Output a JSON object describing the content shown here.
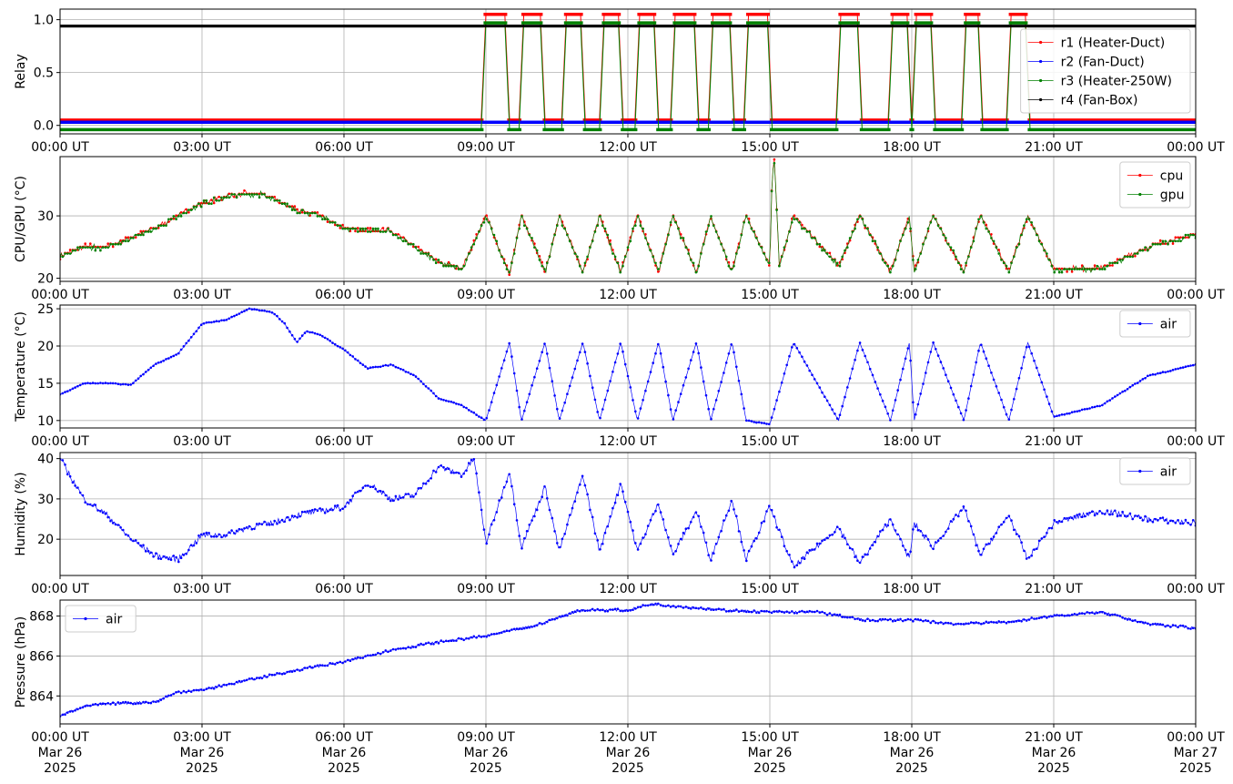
{
  "chart_data": [
    {
      "type": "line",
      "ylabel": "Relay",
      "ylim": [
        -0.08,
        1.1
      ],
      "yticks": [
        0.0,
        0.5,
        1.0
      ],
      "ytick_labels": [
        "0.0",
        "0.5",
        "1.0"
      ],
      "grid": true,
      "legend": "right",
      "legend_placement": "center-right",
      "on_intervals_hours": [
        [
          8.95,
          9.45
        ],
        [
          9.75,
          10.2
        ],
        [
          10.65,
          11.05
        ],
        [
          11.45,
          11.85
        ],
        [
          12.2,
          12.6
        ],
        [
          12.95,
          13.45
        ],
        [
          13.75,
          14.2
        ],
        [
          14.5,
          15.0
        ],
        [
          16.45,
          16.9
        ],
        [
          17.55,
          17.95
        ],
        [
          18.05,
          18.45
        ],
        [
          19.1,
          19.45
        ],
        [
          20.05,
          20.45
        ]
      ],
      "series": [
        {
          "name": "r1 (Heater-Duct)",
          "color": "#ff0000",
          "off_value": 0.05,
          "on_value": 1.05,
          "marker": "dot"
        },
        {
          "name": "r2 (Fan-Duct)",
          "color": "#0000ff",
          "off_value": 0.03,
          "on_value": 0.03,
          "marker": "dot"
        },
        {
          "name": "r3 (Heater-250W)",
          "color": "#008000",
          "off_value": -0.04,
          "on_value": 0.97,
          "marker": "dot"
        },
        {
          "name": "r4 (Fan-Box)",
          "color": "#000000",
          "off_value": 0.94,
          "on_value": 0.94,
          "marker": "dot"
        }
      ]
    },
    {
      "type": "line",
      "ylabel": "CPU/GPU (°C)",
      "ylim": [
        19.5,
        39.5
      ],
      "yticks": [
        20,
        30
      ],
      "ytick_labels": [
        "20",
        "30"
      ],
      "grid": true,
      "legend_placement": "top-right",
      "series": [
        {
          "name": "cpu",
          "color": "#ff0000",
          "x_hours": [
            0,
            0.5,
            1,
            2,
            3,
            3.75,
            4.25,
            5,
            5.5,
            6,
            7,
            7.5,
            8,
            8.5,
            9,
            9.5,
            9.75,
            10.25,
            10.55,
            11.05,
            11.4,
            11.85,
            12.2,
            12.65,
            12.95,
            13.45,
            13.75,
            14.2,
            14.5,
            15.0,
            15.05,
            15.1,
            15.2,
            15.25,
            15.5,
            16.45,
            16.9,
            17.55,
            17.95,
            18.05,
            18.45,
            19.1,
            19.45,
            20.05,
            20.45,
            21,
            22,
            23,
            24
          ],
          "y": [
            23.5,
            25,
            25,
            28,
            32,
            33.5,
            33.5,
            31,
            30,
            28,
            27.5,
            25,
            22.5,
            21.5,
            30,
            20.5,
            30,
            21,
            30,
            21,
            30,
            21,
            30,
            21,
            30,
            21,
            30,
            21,
            30,
            22,
            37,
            39,
            22,
            23,
            30,
            22,
            30,
            21,
            30,
            21,
            30,
            21,
            30,
            21,
            30,
            21.5,
            21.5,
            25,
            27
          ]
        },
        {
          "name": "gpu",
          "color": "#008000",
          "x_hours": [
            0,
            0.5,
            1,
            2,
            3,
            3.75,
            4.25,
            5,
            5.5,
            6,
            7,
            7.5,
            8,
            8.5,
            9,
            9.5,
            9.75,
            10.25,
            10.55,
            11.05,
            11.4,
            11.85,
            12.2,
            12.65,
            12.95,
            13.45,
            13.75,
            14.2,
            14.5,
            15.0,
            15.05,
            15.1,
            15.2,
            15.25,
            15.5,
            16.45,
            16.9,
            17.55,
            17.95,
            18.05,
            18.45,
            19.1,
            19.45,
            20.05,
            20.45,
            21,
            22,
            23,
            24
          ],
          "y": [
            23.5,
            25,
            25,
            28,
            32,
            33.5,
            33.5,
            31,
            30,
            28,
            27.5,
            25,
            22.5,
            21.5,
            30,
            20.5,
            30,
            21,
            30,
            21,
            30,
            21,
            30,
            21,
            30,
            21,
            30,
            21,
            30,
            22,
            37,
            39,
            22,
            23,
            30,
            22,
            30,
            21,
            30,
            21,
            30,
            21,
            30,
            21,
            30,
            21.5,
            21.5,
            25,
            27
          ]
        }
      ]
    },
    {
      "type": "line",
      "ylabel": "Temperature (°C)",
      "ylim": [
        9,
        25.5
      ],
      "yticks": [
        10,
        15,
        20,
        25
      ],
      "ytick_labels": [
        "10",
        "15",
        "20",
        "25"
      ],
      "grid": true,
      "legend_placement": "top-right",
      "series": [
        {
          "name": "air",
          "color": "#0000ff",
          "x_hours": [
            0,
            0.5,
            1,
            1.5,
            2,
            2.5,
            3,
            3.5,
            4,
            4.5,
            4.75,
            5,
            5.2,
            5.5,
            6,
            6.5,
            7,
            7.5,
            8,
            8.5,
            9,
            9.5,
            9.75,
            10.25,
            10.55,
            11.05,
            11.4,
            11.85,
            12.2,
            12.65,
            12.95,
            13.45,
            13.75,
            14.2,
            14.5,
            15.0,
            15.5,
            16.45,
            16.9,
            17.55,
            17.95,
            18.05,
            18.45,
            19.1,
            19.45,
            20.05,
            20.45,
            21,
            22,
            23,
            24
          ],
          "y": [
            13.5,
            15,
            15,
            14.8,
            17.5,
            19,
            23,
            23.5,
            25,
            24.5,
            23,
            20.5,
            22,
            21.5,
            19.5,
            17,
            17.5,
            16,
            13,
            12,
            10,
            20.5,
            10,
            20.5,
            10,
            20.5,
            10,
            20.5,
            10,
            20.5,
            10,
            20.5,
            10,
            20.5,
            10,
            9.5,
            20.5,
            10,
            20.5,
            10,
            20.5,
            10,
            20.5,
            10,
            20.5,
            10,
            20.5,
            10.5,
            12,
            16,
            17.5
          ]
        }
      ]
    },
    {
      "type": "line",
      "ylabel": "Humidity (%)",
      "ylim": [
        11,
        41.5
      ],
      "yticks": [
        20,
        30,
        40
      ],
      "ytick_labels": [
        "20",
        "30",
        "40"
      ],
      "grid": true,
      "legend_placement": "top-right",
      "series": [
        {
          "name": "air",
          "color": "#0000ff",
          "x_hours": [
            0,
            0.5,
            1,
            1.5,
            2,
            2.5,
            3,
            3.5,
            4,
            4.5,
            5,
            5.5,
            6,
            6.5,
            7,
            7.5,
            8,
            8.5,
            8.75,
            9,
            9.5,
            9.75,
            10.25,
            10.55,
            11.05,
            11.4,
            11.85,
            12.2,
            12.65,
            12.95,
            13.45,
            13.75,
            14.2,
            14.5,
            15.0,
            15.5,
            16.45,
            16.9,
            17.55,
            17.95,
            18.05,
            18.45,
            19.1,
            19.45,
            20.05,
            20.45,
            21,
            22,
            23,
            24
          ],
          "y": [
            40,
            30,
            26,
            20,
            16,
            15,
            21,
            21,
            23,
            24,
            26,
            27,
            28,
            34,
            30,
            31,
            38,
            36,
            40,
            19,
            37,
            18,
            33,
            17,
            36,
            17,
            34,
            17,
            29,
            16,
            27,
            15,
            30,
            15,
            28,
            13,
            23,
            14,
            25,
            15,
            24,
            18,
            28,
            16,
            26,
            15,
            24,
            27,
            25,
            24
          ]
        }
      ]
    },
    {
      "type": "line",
      "ylabel": "Pressure (hPa)",
      "ylim": [
        862.6,
        868.8
      ],
      "yticks": [
        864,
        866,
        868
      ],
      "ytick_labels": [
        "864",
        "866",
        "868"
      ],
      "grid": true,
      "legend_placement": "top-left",
      "series": [
        {
          "name": "air",
          "color": "#0000ff",
          "x_hours": [
            0,
            0.5,
            1,
            2,
            2.5,
            3,
            4,
            5,
            6,
            7,
            8,
            9,
            10,
            11,
            12,
            12.5,
            13,
            14,
            15,
            16,
            17,
            18,
            19,
            20,
            21,
            22,
            23,
            24
          ],
          "y": [
            863.0,
            863.5,
            863.6,
            863.7,
            864.2,
            864.3,
            864.8,
            865.3,
            865.7,
            866.3,
            866.7,
            867.0,
            867.5,
            868.3,
            868.3,
            868.6,
            868.5,
            868.3,
            868.2,
            868.2,
            867.8,
            867.8,
            867.6,
            867.7,
            868.0,
            868.2,
            867.6,
            867.4
          ]
        }
      ]
    }
  ],
  "x_axis": {
    "tick_labels": [
      "00:00 UT",
      "03:00 UT",
      "06:00 UT",
      "09:00 UT",
      "12:00 UT",
      "15:00 UT",
      "18:00 UT",
      "21:00 UT",
      "00:00 UT"
    ],
    "bottom_date_lines": [
      "Mar 26",
      "Mar 26",
      "Mar 26",
      "Mar 26",
      "Mar 26",
      "Mar 26",
      "Mar 26",
      "Mar 26",
      "Mar 27"
    ],
    "bottom_year_line": "2025"
  }
}
